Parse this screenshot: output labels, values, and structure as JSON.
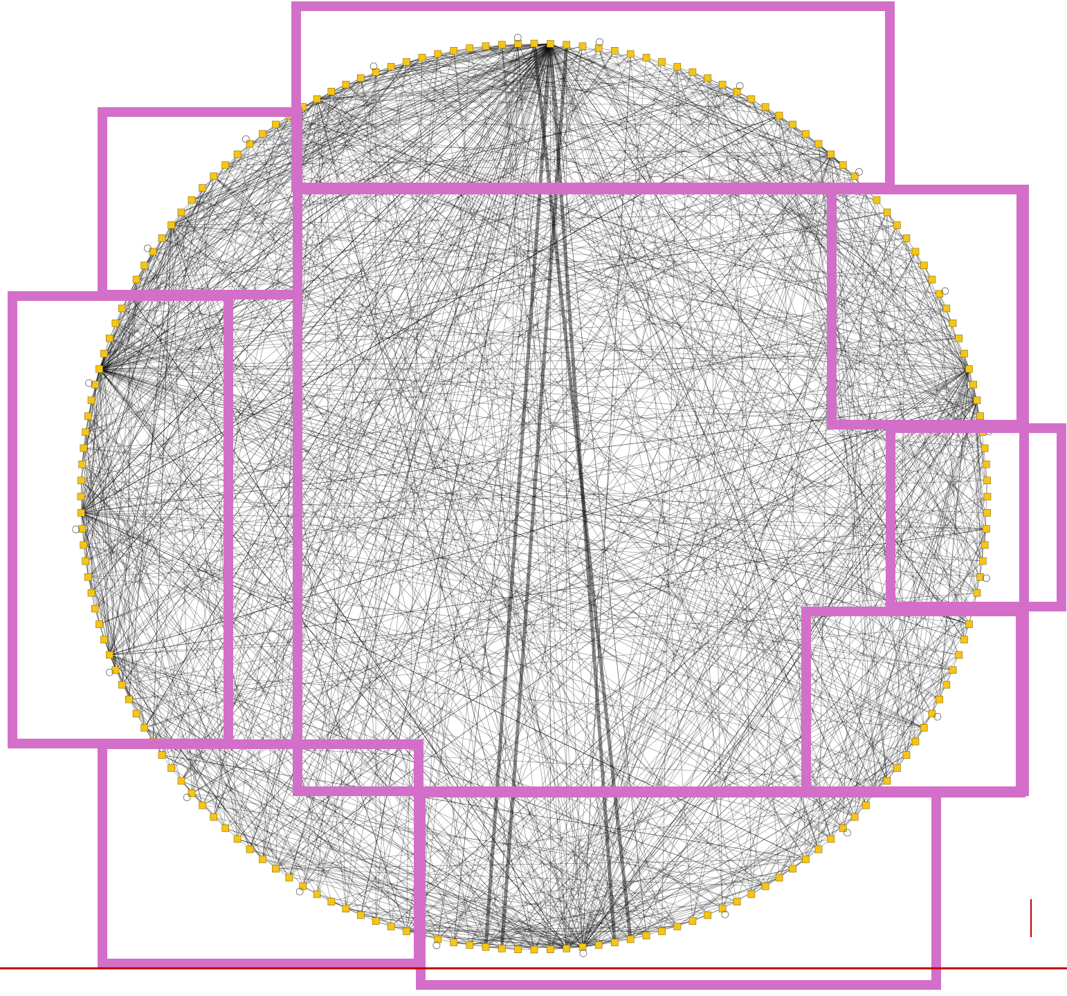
{
  "diagram": {
    "type": "circular-network-graph",
    "node_count": 176,
    "hub_node_index": 1,
    "colors": {
      "node_fill": "#f5c518",
      "edge": "#000000",
      "frame": "#d36fc9",
      "rule": "#c00000",
      "background": "#ffffff"
    },
    "frame_regions": [
      "top-center",
      "top-left",
      "center",
      "left",
      "right-upper",
      "right-middle",
      "right-lower",
      "bottom-left",
      "bottom-center"
    ]
  }
}
